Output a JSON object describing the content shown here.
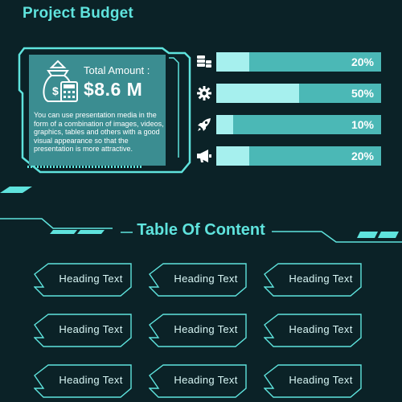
{
  "page": {
    "title": "Project Budget",
    "background": "#0b2227",
    "accent": "#5fe3dd"
  },
  "summary": {
    "total_label": "Total Amount :",
    "total_value": "$8.6 M",
    "description": "You can use presentation media in the form of a combination of images, videos, graphics, tables and others with a good visual appearance so that the presentation is more attractive.",
    "icon": "money-bag-calculator-icon"
  },
  "budget_bars": [
    {
      "icon": "coins-icon",
      "value": 20,
      "label": "20%"
    },
    {
      "icon": "gear-icon",
      "value": 50,
      "label": "50%"
    },
    {
      "icon": "rocket-icon",
      "value": 10,
      "label": "10%"
    },
    {
      "icon": "megaphone-icon",
      "value": 20,
      "label": "20%"
    }
  ],
  "toc": {
    "title": "Table Of Content",
    "items": [
      "Heading Text",
      "Heading Text",
      "Heading Text",
      "Heading Text",
      "Heading Text",
      "Heading Text",
      "Heading Text",
      "Heading Text",
      "Heading Text"
    ]
  }
}
